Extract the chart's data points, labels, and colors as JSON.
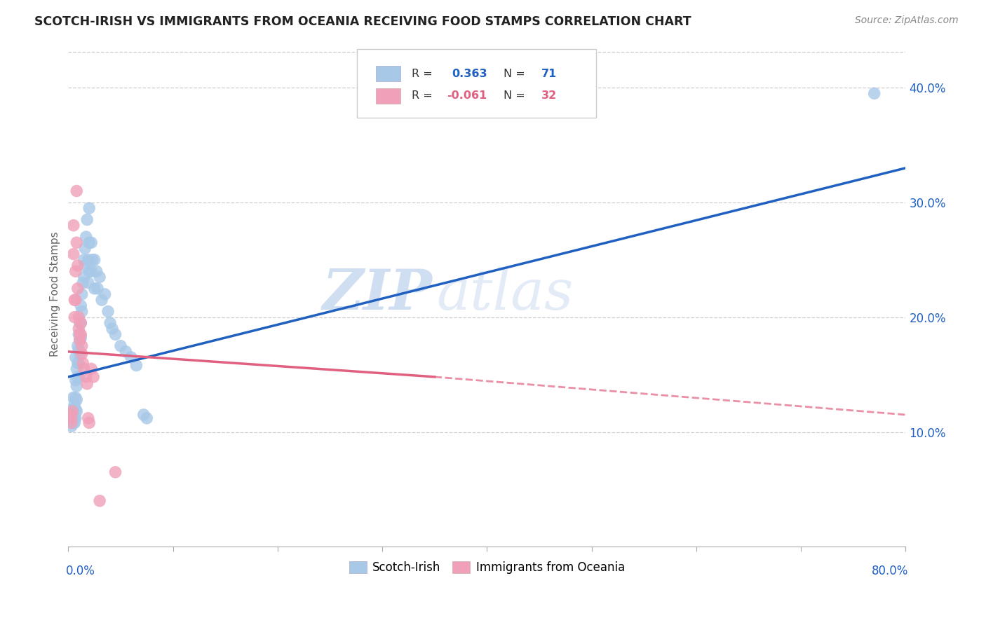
{
  "title": "SCOTCH-IRISH VS IMMIGRANTS FROM OCEANIA RECEIVING FOOD STAMPS CORRELATION CHART",
  "source": "Source: ZipAtlas.com",
  "ylabel": "Receiving Food Stamps",
  "ytick_vals": [
    0.1,
    0.2,
    0.3,
    0.4
  ],
  "ytick_labels": [
    "10.0%",
    "20.0%",
    "30.0%",
    "40.0%"
  ],
  "xmin": 0.0,
  "xmax": 0.8,
  "ymin": 0.0,
  "ymax": 0.44,
  "legend_label1": "Scotch-Irish",
  "legend_label2": "Immigrants from Oceania",
  "blue_color": "#A8C8E8",
  "pink_color": "#F0A0B8",
  "blue_line_color": "#2060C0",
  "pink_line_color": "#E06080",
  "blue_scatter": [
    [
      0.002,
      0.115
    ],
    [
      0.003,
      0.11
    ],
    [
      0.003,
      0.105
    ],
    [
      0.004,
      0.12
    ],
    [
      0.004,
      0.112
    ],
    [
      0.004,
      0.108
    ],
    [
      0.005,
      0.13
    ],
    [
      0.005,
      0.118
    ],
    [
      0.005,
      0.112
    ],
    [
      0.005,
      0.108
    ],
    [
      0.006,
      0.125
    ],
    [
      0.006,
      0.118
    ],
    [
      0.006,
      0.112
    ],
    [
      0.006,
      0.108
    ],
    [
      0.007,
      0.165
    ],
    [
      0.007,
      0.145
    ],
    [
      0.007,
      0.13
    ],
    [
      0.007,
      0.12
    ],
    [
      0.007,
      0.112
    ],
    [
      0.008,
      0.155
    ],
    [
      0.008,
      0.14
    ],
    [
      0.008,
      0.128
    ],
    [
      0.008,
      0.118
    ],
    [
      0.009,
      0.175
    ],
    [
      0.009,
      0.16
    ],
    [
      0.009,
      0.148
    ],
    [
      0.01,
      0.185
    ],
    [
      0.01,
      0.172
    ],
    [
      0.01,
      0.16
    ],
    [
      0.01,
      0.148
    ],
    [
      0.011,
      0.195
    ],
    [
      0.011,
      0.18
    ],
    [
      0.011,
      0.168
    ],
    [
      0.012,
      0.21
    ],
    [
      0.012,
      0.195
    ],
    [
      0.012,
      0.182
    ],
    [
      0.013,
      0.22
    ],
    [
      0.013,
      0.205
    ],
    [
      0.014,
      0.23
    ],
    [
      0.015,
      0.25
    ],
    [
      0.015,
      0.235
    ],
    [
      0.016,
      0.26
    ],
    [
      0.016,
      0.245
    ],
    [
      0.017,
      0.27
    ],
    [
      0.018,
      0.285
    ],
    [
      0.019,
      0.25
    ],
    [
      0.019,
      0.23
    ],
    [
      0.02,
      0.295
    ],
    [
      0.02,
      0.265
    ],
    [
      0.02,
      0.24
    ],
    [
      0.022,
      0.265
    ],
    [
      0.022,
      0.24
    ],
    [
      0.023,
      0.25
    ],
    [
      0.025,
      0.25
    ],
    [
      0.025,
      0.225
    ],
    [
      0.027,
      0.24
    ],
    [
      0.028,
      0.225
    ],
    [
      0.03,
      0.235
    ],
    [
      0.032,
      0.215
    ],
    [
      0.035,
      0.22
    ],
    [
      0.038,
      0.205
    ],
    [
      0.04,
      0.195
    ],
    [
      0.042,
      0.19
    ],
    [
      0.045,
      0.185
    ],
    [
      0.05,
      0.175
    ],
    [
      0.055,
      0.17
    ],
    [
      0.06,
      0.165
    ],
    [
      0.065,
      0.158
    ],
    [
      0.072,
      0.115
    ],
    [
      0.075,
      0.112
    ],
    [
      0.77,
      0.395
    ]
  ],
  "pink_scatter": [
    [
      0.002,
      0.115
    ],
    [
      0.003,
      0.112
    ],
    [
      0.003,
      0.108
    ],
    [
      0.004,
      0.118
    ],
    [
      0.005,
      0.28
    ],
    [
      0.005,
      0.255
    ],
    [
      0.006,
      0.215
    ],
    [
      0.006,
      0.2
    ],
    [
      0.007,
      0.24
    ],
    [
      0.007,
      0.215
    ],
    [
      0.008,
      0.31
    ],
    [
      0.008,
      0.265
    ],
    [
      0.009,
      0.245
    ],
    [
      0.009,
      0.225
    ],
    [
      0.01,
      0.2
    ],
    [
      0.01,
      0.19
    ],
    [
      0.011,
      0.185
    ],
    [
      0.011,
      0.18
    ],
    [
      0.012,
      0.195
    ],
    [
      0.012,
      0.185
    ],
    [
      0.013,
      0.175
    ],
    [
      0.013,
      0.168
    ],
    [
      0.014,
      0.16
    ],
    [
      0.015,
      0.155
    ],
    [
      0.017,
      0.148
    ],
    [
      0.018,
      0.142
    ],
    [
      0.019,
      0.112
    ],
    [
      0.02,
      0.108
    ],
    [
      0.022,
      0.155
    ],
    [
      0.024,
      0.148
    ],
    [
      0.03,
      0.04
    ],
    [
      0.045,
      0.065
    ]
  ],
  "blue_trendline": [
    [
      0.0,
      0.148
    ],
    [
      0.8,
      0.33
    ]
  ],
  "pink_trendline_solid": [
    [
      0.0,
      0.17
    ],
    [
      0.35,
      0.148
    ]
  ],
  "pink_trendline_dashed": [
    [
      0.35,
      0.148
    ],
    [
      0.8,
      0.115
    ]
  ],
  "watermark_zip": "ZIP",
  "watermark_atlas": "atlas",
  "background_color": "#FFFFFF",
  "grid_color": "#CCCCCC",
  "r1": "0.363",
  "n1": "71",
  "r2": "-0.061",
  "n2": "32"
}
